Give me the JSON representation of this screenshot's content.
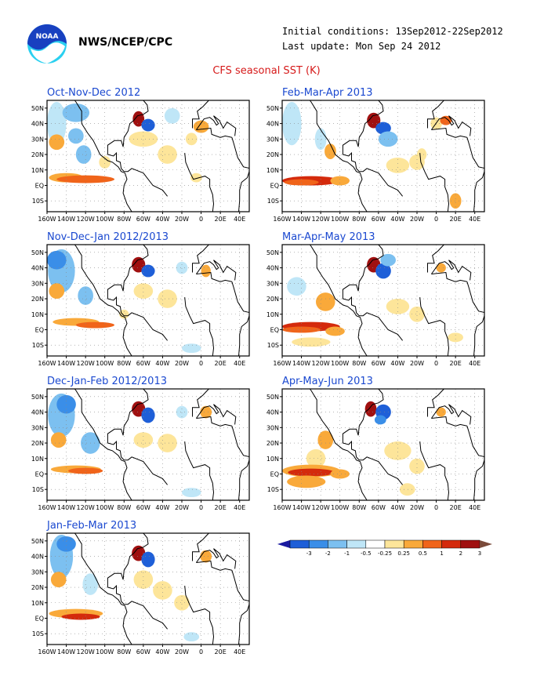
{
  "header": {
    "org": "NWS/NCEP/CPC",
    "initial_conditions": "Initial conditions: 13Sep2012-22Sep2012",
    "last_update": "Last update: Mon Sep 24 2012",
    "logo_text": "NOAA"
  },
  "title": "CFS seasonal SST (K)",
  "panels": [
    {
      "id": "OND",
      "title": "Oct-Nov-Dec 2012"
    },
    {
      "id": "FMA",
      "title": "Feb-Mar-Apr 2013"
    },
    {
      "id": "NDJ",
      "title": "Nov-Dec-Jan 2012/2013"
    },
    {
      "id": "MAM",
      "title": "Mar-Apr-May 2013"
    },
    {
      "id": "DJF",
      "title": "Dec-Jan-Feb 2012/2013"
    },
    {
      "id": "AMJ",
      "title": "Apr-May-Jun 2013"
    },
    {
      "id": "JFM",
      "title": "Jan-Feb-Mar 2013"
    }
  ],
  "axes": {
    "lon_ticks": [
      "160W",
      "140W",
      "120W",
      "100W",
      "80W",
      "60W",
      "40W",
      "20W",
      "0",
      "20E",
      "40E"
    ],
    "lat_ticks": [
      "50N",
      "40N",
      "30N",
      "20N",
      "10N",
      "EQ",
      "10S"
    ]
  },
  "colorbar": {
    "labels": [
      "-3",
      "-2",
      "-1",
      "-0.5",
      "-0.25",
      "0.25",
      "0.5",
      "1",
      "2",
      "3"
    ],
    "colors": [
      "#1a1aa0",
      "#1e5fd8",
      "#3a8ee8",
      "#7cc0f0",
      "#bfe6f7",
      "#ffffff",
      "#fde59a",
      "#f9a93a",
      "#f0641a",
      "#d42a0c",
      "#a01010",
      "#7a4a3a"
    ]
  },
  "colors": {
    "title_red": "#d61a1a",
    "panel_title_blue": "#1b49d0"
  }
}
